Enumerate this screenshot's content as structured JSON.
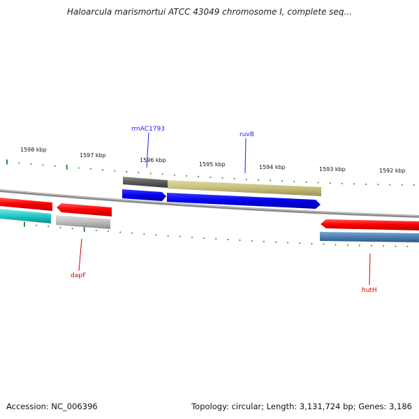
{
  "title": "Haloarcula marismortui ATCC 43049 chromosome I, complete seq...",
  "footer": {
    "accession": "Accession: NC_006396",
    "summary": "Topology: circular; Length: 3,131,724 bp; Genes: 3,186"
  },
  "scale": {
    "units": "kbp",
    "tick_labels": [
      "1598 kbp",
      "1597 kbp",
      "1596 kbp",
      "1595 kbp",
      "1594 kbp",
      "1593 kbp",
      "1592 kbp"
    ]
  },
  "gene_labels": {
    "rrnAC1793": "rrnAC1793",
    "ruvB": "ruvB",
    "dapF": "dapF",
    "hutH": "hutH"
  },
  "colors": {
    "backbone": "#8a8a8a",
    "ticks": "#2a8a2a",
    "cds": "#ff0000",
    "cds_reverse": "#0000ee",
    "label_blue": "#1a1aff",
    "label_red": "#cc0000",
    "gene_grey_dark": "#5a5a5a",
    "gene_khaki": "#c4bc78",
    "gene_cyan": "#20c8c8",
    "gene_grey_light": "#bcbcbc",
    "gene_steelblue": "#4a7fb0"
  }
}
